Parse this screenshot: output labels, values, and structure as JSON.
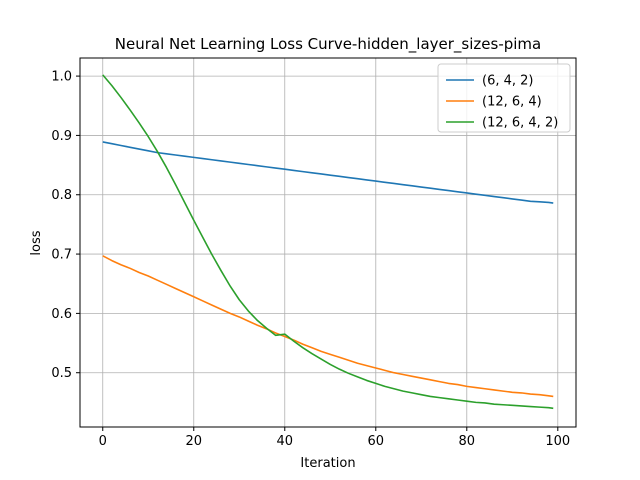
{
  "chart_data": {
    "type": "line",
    "title": "Neural Net Learning Loss Curve-hidden_layer_sizes-pima",
    "xlabel": "Iteration",
    "ylabel": "loss",
    "xlim": [
      -5,
      104
    ],
    "ylim": [
      0.4085,
      1.0305
    ],
    "xticks": [
      0,
      20,
      40,
      60,
      80,
      100
    ],
    "yticks": [
      0.5,
      0.6,
      0.7,
      0.8,
      0.9,
      1.0
    ],
    "xtick_labels": [
      "0",
      "20",
      "40",
      "60",
      "80",
      "100"
    ],
    "ytick_labels": [
      "0.5",
      "0.6",
      "0.7",
      "0.8",
      "0.9",
      "1.0"
    ],
    "grid": true,
    "legend_position": "top-right",
    "x": [
      0,
      2,
      4,
      6,
      8,
      10,
      12,
      14,
      16,
      18,
      20,
      22,
      24,
      26,
      28,
      30,
      32,
      34,
      36,
      38,
      40,
      42,
      44,
      46,
      48,
      50,
      52,
      54,
      56,
      58,
      60,
      62,
      64,
      66,
      68,
      70,
      72,
      74,
      76,
      78,
      80,
      82,
      84,
      86,
      88,
      90,
      92,
      94,
      96,
      98,
      99
    ],
    "series": [
      {
        "name": "(6, 4, 2)",
        "color": "#1f77b4",
        "values": [
          0.889,
          0.886,
          0.883,
          0.88,
          0.877,
          0.874,
          0.871,
          0.869,
          0.867,
          0.865,
          0.863,
          0.861,
          0.859,
          0.857,
          0.855,
          0.853,
          0.851,
          0.849,
          0.847,
          0.845,
          0.843,
          0.841,
          0.839,
          0.837,
          0.835,
          0.833,
          0.831,
          0.829,
          0.827,
          0.825,
          0.823,
          0.821,
          0.819,
          0.817,
          0.815,
          0.813,
          0.811,
          0.809,
          0.807,
          0.805,
          0.803,
          0.801,
          0.799,
          0.797,
          0.795,
          0.793,
          0.791,
          0.789,
          0.788,
          0.787,
          0.786
        ]
      },
      {
        "name": "(12, 6, 4)",
        "color": "#ff7f0e",
        "values": [
          0.697,
          0.689,
          0.682,
          0.676,
          0.669,
          0.663,
          0.656,
          0.649,
          0.642,
          0.635,
          0.628,
          0.621,
          0.614,
          0.607,
          0.6,
          0.594,
          0.587,
          0.58,
          0.574,
          0.567,
          0.561,
          0.555,
          0.548,
          0.542,
          0.536,
          0.531,
          0.526,
          0.521,
          0.516,
          0.512,
          0.508,
          0.504,
          0.5,
          0.497,
          0.494,
          0.491,
          0.488,
          0.485,
          0.482,
          0.48,
          0.477,
          0.475,
          0.473,
          0.471,
          0.469,
          0.467,
          0.466,
          0.464,
          0.463,
          0.461,
          0.46
        ]
      },
      {
        "name": "(12, 6, 4, 2)",
        "color": "#2ca02c",
        "values": [
          1.002,
          0.984,
          0.964,
          0.943,
          0.921,
          0.898,
          0.873,
          0.846,
          0.817,
          0.787,
          0.757,
          0.728,
          0.699,
          0.672,
          0.646,
          0.623,
          0.604,
          0.588,
          0.575,
          0.563,
          0.565,
          0.553,
          0.542,
          0.532,
          0.523,
          0.514,
          0.506,
          0.499,
          0.493,
          0.487,
          0.482,
          0.477,
          0.473,
          0.469,
          0.466,
          0.463,
          0.46,
          0.458,
          0.456,
          0.454,
          0.452,
          0.45,
          0.449,
          0.447,
          0.446,
          0.445,
          0.444,
          0.443,
          0.442,
          0.441,
          0.44
        ]
      }
    ]
  }
}
